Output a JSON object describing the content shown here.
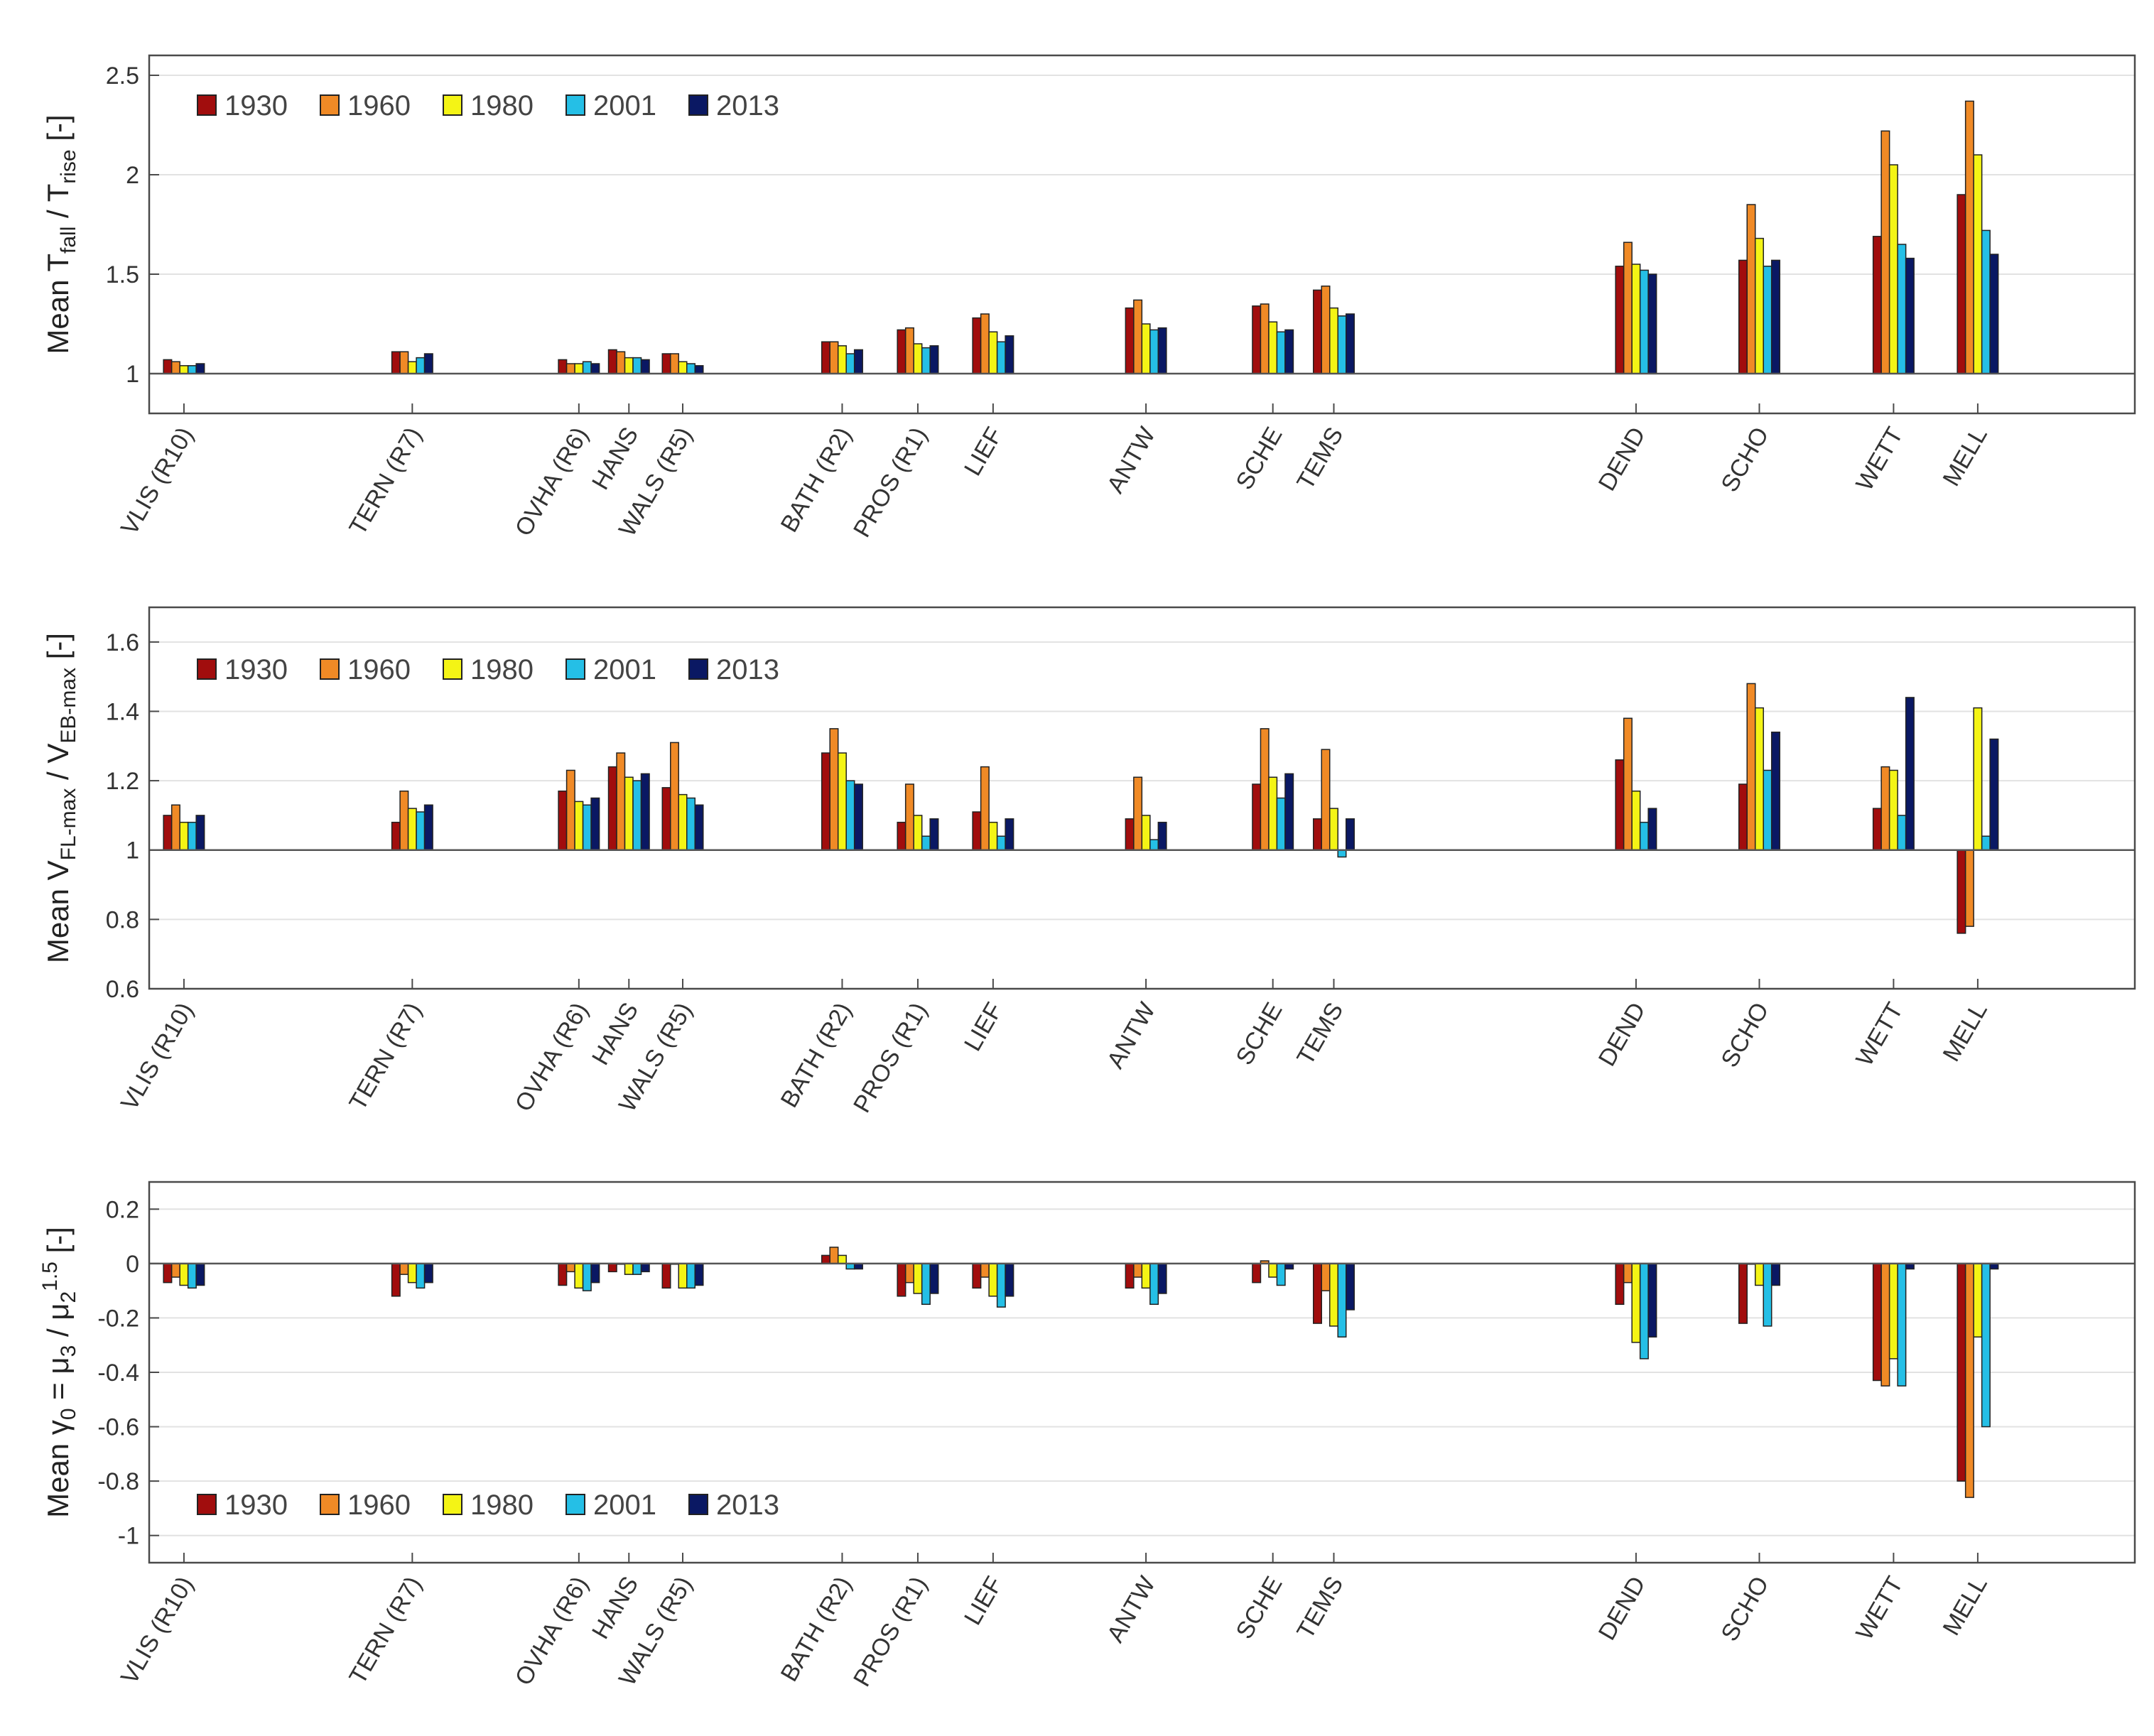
{
  "colors": {
    "1930": "#a10d0d",
    "1960": "#f08a26",
    "1980": "#f4f415",
    "2001": "#25bfe6",
    "2013": "#0a1863",
    "grid": "#e2e2e2",
    "axis": "#4a4a4a",
    "bar_outline": "#222222"
  },
  "stations": [
    "VLIS (R10)",
    "TERN (R7)",
    "OVHA (R6)",
    "HANS",
    "WALS (R5)",
    "BATH (R2)",
    "PROS (R1)",
    "LIEF",
    "ANTW",
    "SCHE",
    "TEMS",
    "DEND",
    "SCHO",
    "WETT",
    "MELL"
  ],
  "legend_years": [
    "1930",
    "1960",
    "1980",
    "2001",
    "2013"
  ],
  "chart_data": [
    {
      "type": "bar",
      "title": "",
      "ylabel": "Mean T_fall / T_rise [-]",
      "ylabel_parts": {
        "pre": "Mean T",
        "sub1": "fall",
        "mid": " / T",
        "sub2": "rise",
        "post": " [-]"
      },
      "ylim": [
        0.8,
        2.6
      ],
      "yticks": [
        1,
        1.5,
        2,
        2.5
      ],
      "baseline": 1,
      "grid": true,
      "legend_position": "top-left",
      "categories": [
        "VLIS (R10)",
        "TERN (R7)",
        "OVHA (R6)",
        "HANS",
        "WALS (R5)",
        "BATH (R2)",
        "PROS (R1)",
        "LIEF",
        "ANTW",
        "SCHE",
        "TEMS",
        "DEND",
        "SCHO",
        "WETT",
        "MELL"
      ],
      "series": [
        {
          "name": "1930",
          "values": [
            1.07,
            1.11,
            1.07,
            1.12,
            1.1,
            1.16,
            1.22,
            1.28,
            1.33,
            1.34,
            1.42,
            1.54,
            1.57,
            1.69,
            1.9
          ]
        },
        {
          "name": "1960",
          "values": [
            1.06,
            1.11,
            1.05,
            1.11,
            1.1,
            1.16,
            1.23,
            1.3,
            1.37,
            1.35,
            1.44,
            1.66,
            1.85,
            2.22,
            2.37
          ]
        },
        {
          "name": "1980",
          "values": [
            1.04,
            1.06,
            1.05,
            1.08,
            1.06,
            1.14,
            1.15,
            1.21,
            1.25,
            1.26,
            1.33,
            1.55,
            1.68,
            2.05,
            2.1
          ]
        },
        {
          "name": "2001",
          "values": [
            1.04,
            1.08,
            1.06,
            1.08,
            1.05,
            1.1,
            1.13,
            1.16,
            1.22,
            1.21,
            1.29,
            1.52,
            1.54,
            1.65,
            1.72
          ]
        },
        {
          "name": "2013",
          "values": [
            1.05,
            1.1,
            1.05,
            1.07,
            1.04,
            1.12,
            1.14,
            1.19,
            1.23,
            1.22,
            1.3,
            1.5,
            1.57,
            1.58,
            1.6
          ]
        }
      ]
    },
    {
      "type": "bar",
      "title": "",
      "ylabel": "Mean V_FL-max / V_EB-max [-]",
      "ylabel_parts": {
        "pre": "Mean V",
        "sub1": "FL-max",
        "mid": " / V",
        "sub2": "EB-max",
        "post": " [-]"
      },
      "ylim": [
        0.6,
        1.7
      ],
      "yticks": [
        0.6,
        0.8,
        1,
        1.2,
        1.4,
        1.6
      ],
      "baseline": 1,
      "grid": true,
      "legend_position": "top-left",
      "categories": [
        "VLIS (R10)",
        "TERN (R7)",
        "OVHA (R6)",
        "HANS",
        "WALS (R5)",
        "BATH (R2)",
        "PROS (R1)",
        "LIEF",
        "ANTW",
        "SCHE",
        "TEMS",
        "DEND",
        "SCHO",
        "WETT",
        "MELL"
      ],
      "series": [
        {
          "name": "1930",
          "values": [
            1.1,
            1.08,
            1.17,
            1.24,
            1.18,
            1.28,
            1.08,
            1.11,
            1.09,
            1.19,
            1.09,
            1.26,
            1.19,
            1.12,
            0.76
          ]
        },
        {
          "name": "1960",
          "values": [
            1.13,
            1.17,
            1.23,
            1.28,
            1.31,
            1.35,
            1.19,
            1.24,
            1.21,
            1.35,
            1.29,
            1.38,
            1.48,
            1.24,
            0.78
          ]
        },
        {
          "name": "1980",
          "values": [
            1.08,
            1.12,
            1.14,
            1.21,
            1.16,
            1.28,
            1.1,
            1.08,
            1.1,
            1.21,
            1.12,
            1.17,
            1.41,
            1.23,
            1.41
          ]
        },
        {
          "name": "2001",
          "values": [
            1.08,
            1.11,
            1.13,
            1.2,
            1.15,
            1.2,
            1.04,
            1.04,
            1.03,
            1.15,
            0.98,
            1.08,
            1.23,
            1.1,
            1.04
          ]
        },
        {
          "name": "2013",
          "values": [
            1.1,
            1.13,
            1.15,
            1.22,
            1.13,
            1.19,
            1.09,
            1.09,
            1.08,
            1.22,
            1.09,
            1.12,
            1.34,
            1.44,
            1.32
          ]
        }
      ]
    },
    {
      "type": "bar",
      "title": "",
      "ylabel": "Mean γ0 = μ3 / μ2^1.5 [-]",
      "ylabel_parts": {
        "pre": "Mean γ",
        "sub1": "0",
        "mid": " = μ",
        "sub2": "3",
        "mid2": " / μ",
        "sub3": "2",
        "sup": "1.5",
        "post": " [-]"
      },
      "ylim": [
        -1.1,
        0.3
      ],
      "yticks": [
        -1,
        -0.8,
        -0.6,
        -0.4,
        -0.2,
        0,
        0.2
      ],
      "baseline": 0,
      "grid": true,
      "legend_position": "bottom-left",
      "categories": [
        "VLIS (R10)",
        "TERN (R7)",
        "OVHA (R6)",
        "HANS",
        "WALS (R5)",
        "BATH (R2)",
        "PROS (R1)",
        "LIEF",
        "ANTW",
        "SCHE",
        "TEMS",
        "DEND",
        "SCHO",
        "WETT",
        "MELL"
      ],
      "series": [
        {
          "name": "1930",
          "values": [
            -0.07,
            -0.12,
            -0.08,
            -0.03,
            -0.09,
            0.03,
            -0.12,
            -0.09,
            -0.09,
            -0.07,
            -0.22,
            -0.15,
            -0.22,
            -0.43,
            -0.8
          ]
        },
        {
          "name": "1960",
          "values": [
            -0.05,
            -0.04,
            -0.03,
            -0.0,
            -0.0,
            0.06,
            -0.07,
            -0.05,
            -0.05,
            0.01,
            -0.1,
            -0.07,
            0.0,
            -0.45,
            -0.86
          ]
        },
        {
          "name": "1980",
          "values": [
            -0.08,
            -0.07,
            -0.09,
            -0.04,
            -0.09,
            0.03,
            -0.11,
            -0.12,
            -0.09,
            -0.05,
            -0.23,
            -0.29,
            -0.08,
            -0.35,
            -0.27
          ]
        },
        {
          "name": "2001",
          "values": [
            -0.09,
            -0.09,
            -0.1,
            -0.04,
            -0.09,
            -0.02,
            -0.15,
            -0.16,
            -0.15,
            -0.08,
            -0.27,
            -0.35,
            -0.23,
            -0.45,
            -0.6
          ]
        },
        {
          "name": "2013",
          "values": [
            -0.08,
            -0.07,
            -0.07,
            -0.03,
            -0.08,
            -0.02,
            -0.11,
            -0.12,
            -0.11,
            -0.02,
            -0.17,
            -0.27,
            -0.08,
            -0.02,
            -0.02
          ]
        }
      ]
    }
  ]
}
